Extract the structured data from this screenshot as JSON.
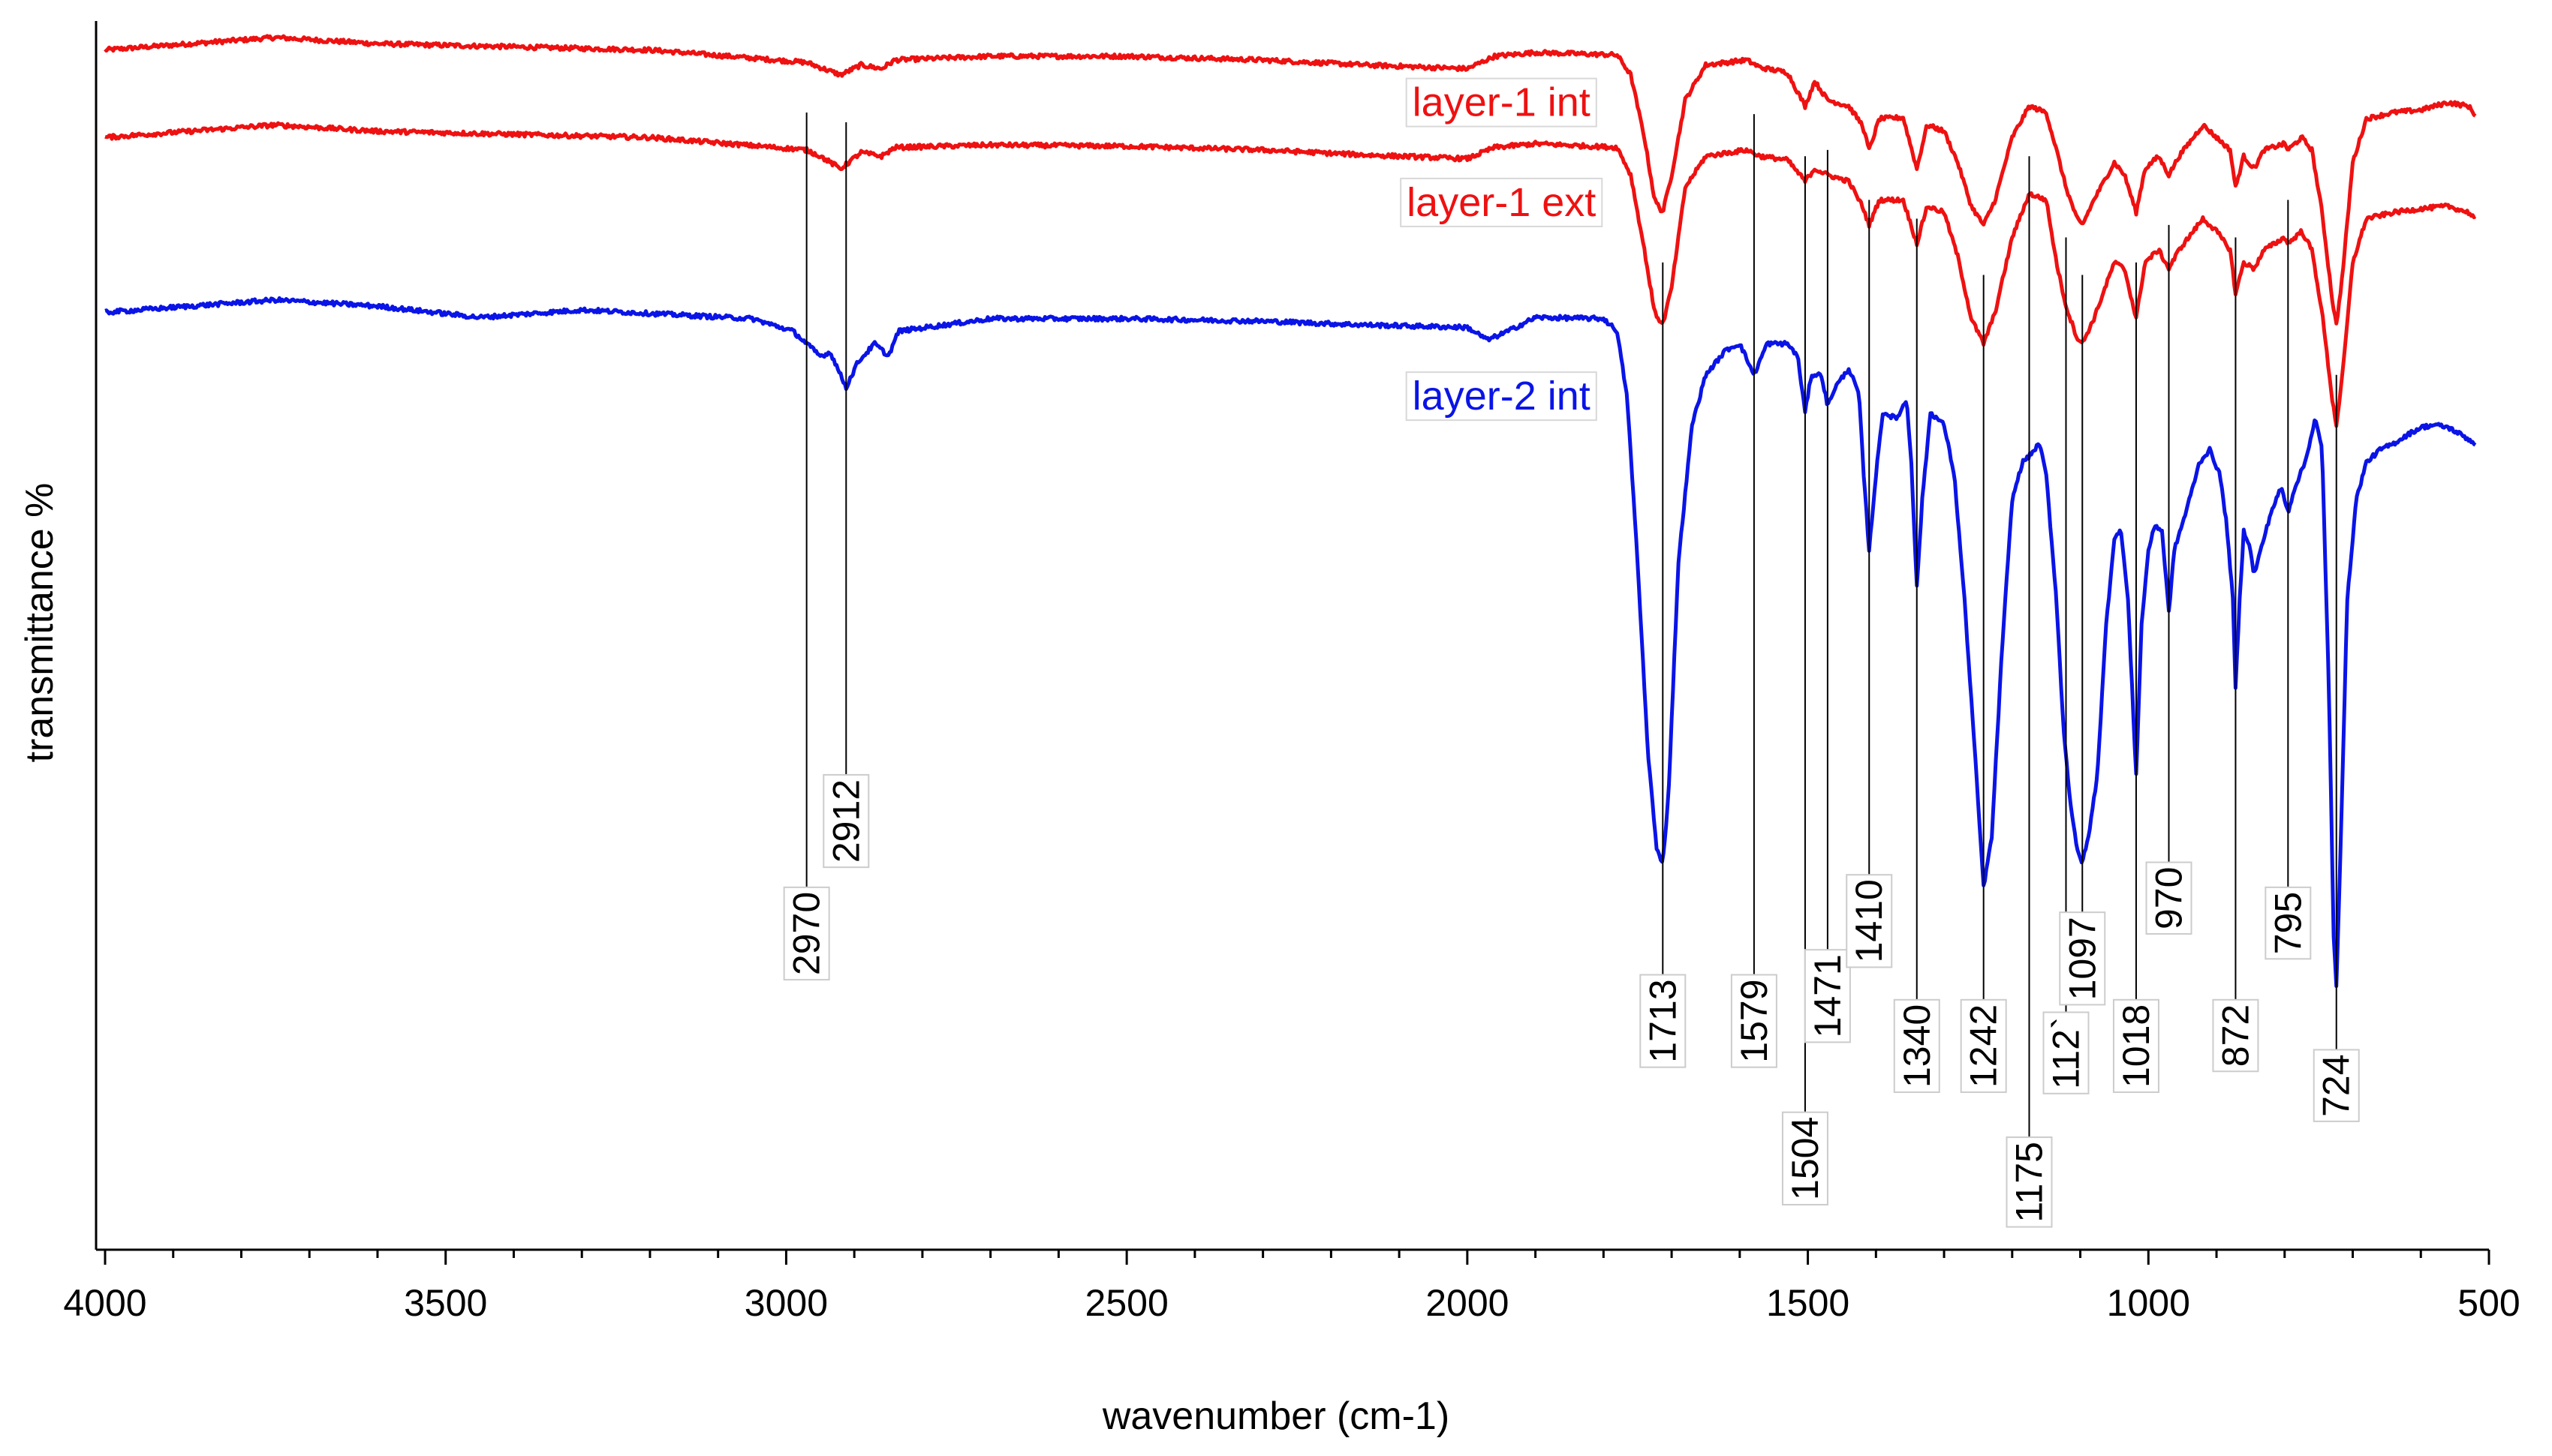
{
  "chart_data": {
    "type": "line",
    "title": "",
    "xlabel": "wavenumber (cm-1)",
    "ylabel": "transmittance %",
    "xlim": [
      4000,
      500
    ],
    "x_reversed": true,
    "ylim": [
      0,
      100
    ],
    "grid": false,
    "x_ticks": [
      4000,
      3500,
      3000,
      2500,
      2000,
      1500,
      1000,
      500
    ],
    "x_minor_step": 100,
    "series": [
      {
        "name": "layer-1 int",
        "color": "#ee1111",
        "baseline": 96,
        "points": [
          [
            4000,
            96
          ],
          [
            3750,
            97
          ],
          [
            3600,
            96.5
          ],
          [
            3200,
            96
          ],
          [
            2970,
            95
          ],
          [
            2950,
            94.6
          ],
          [
            2920,
            94
          ],
          [
            2890,
            94.8
          ],
          [
            2860,
            94.5
          ],
          [
            2840,
            95.2
          ],
          [
            2700,
            95.5
          ],
          [
            2500,
            95.5
          ],
          [
            2300,
            95.2
          ],
          [
            2150,
            94.8
          ],
          [
            2000,
            94.5
          ],
          [
            1960,
            95.5
          ],
          [
            1900,
            95.8
          ],
          [
            1780,
            95.6
          ],
          [
            1760,
            94
          ],
          [
            1740,
            89
          ],
          [
            1725,
            84
          ],
          [
            1713,
            83
          ],
          [
            1700,
            86
          ],
          [
            1680,
            92
          ],
          [
            1650,
            94.8
          ],
          [
            1590,
            95.2
          ],
          [
            1570,
            94.6
          ],
          [
            1530,
            94.2
          ],
          [
            1504,
            91.5
          ],
          [
            1490,
            93.5
          ],
          [
            1471,
            92
          ],
          [
            1440,
            91.5
          ],
          [
            1420,
            90
          ],
          [
            1410,
            88
          ],
          [
            1395,
            90.5
          ],
          [
            1360,
            90.6
          ],
          [
            1340,
            86.5
          ],
          [
            1325,
            90
          ],
          [
            1300,
            89.5
          ],
          [
            1280,
            87
          ],
          [
            1260,
            83.5
          ],
          [
            1242,
            82
          ],
          [
            1225,
            84
          ],
          [
            1200,
            89
          ],
          [
            1175,
            91.5
          ],
          [
            1150,
            91
          ],
          [
            1135,
            88
          ],
          [
            1121,
            85
          ],
          [
            1105,
            82.5
          ],
          [
            1097,
            82
          ],
          [
            1080,
            84
          ],
          [
            1050,
            87
          ],
          [
            1035,
            86
          ],
          [
            1018,
            83
          ],
          [
            1005,
            86.5
          ],
          [
            985,
            87.5
          ],
          [
            970,
            86
          ],
          [
            955,
            87.5
          ],
          [
            920,
            90
          ],
          [
            900,
            89
          ],
          [
            880,
            88
          ],
          [
            872,
            85
          ],
          [
            860,
            87.5
          ],
          [
            845,
            86.5
          ],
          [
            830,
            88
          ],
          [
            800,
            88.5
          ],
          [
            795,
            88
          ],
          [
            775,
            89
          ],
          [
            760,
            88
          ],
          [
            745,
            83
          ],
          [
            730,
            76
          ],
          [
            724,
            74
          ],
          [
            715,
            78
          ],
          [
            700,
            87
          ],
          [
            680,
            90.5
          ],
          [
            640,
            91
          ],
          [
            600,
            91.2
          ],
          [
            560,
            91.8
          ],
          [
            530,
            91.5
          ],
          [
            520,
            90.8
          ]
        ]
      },
      {
        "name": "layer-1 ext",
        "color": "#ee1111",
        "baseline": 89,
        "points": [
          [
            4000,
            89
          ],
          [
            3750,
            90
          ],
          [
            3600,
            89.5
          ],
          [
            3200,
            89
          ],
          [
            2970,
            88
          ],
          [
            2950,
            87.5
          ],
          [
            2920,
            86.5
          ],
          [
            2890,
            87.8
          ],
          [
            2860,
            87.5
          ],
          [
            2840,
            88.2
          ],
          [
            2700,
            88.4
          ],
          [
            2500,
            88.3
          ],
          [
            2300,
            88
          ],
          [
            2150,
            87.6
          ],
          [
            2000,
            87.3
          ],
          [
            1960,
            88.2
          ],
          [
            1900,
            88.5
          ],
          [
            1780,
            88.2
          ],
          [
            1760,
            86
          ],
          [
            1740,
            80
          ],
          [
            1725,
            75
          ],
          [
            1713,
            74
          ],
          [
            1700,
            77
          ],
          [
            1680,
            85
          ],
          [
            1650,
            87.5
          ],
          [
            1590,
            88
          ],
          [
            1570,
            87.5
          ],
          [
            1530,
            87.2
          ],
          [
            1504,
            85.5
          ],
          [
            1490,
            86.5
          ],
          [
            1471,
            86
          ],
          [
            1440,
            85.5
          ],
          [
            1420,
            83.5
          ],
          [
            1410,
            82
          ],
          [
            1395,
            84
          ],
          [
            1360,
            84
          ],
          [
            1340,
            80.5
          ],
          [
            1325,
            83.5
          ],
          [
            1300,
            83
          ],
          [
            1280,
            79.5
          ],
          [
            1260,
            74.5
          ],
          [
            1242,
            72.5
          ],
          [
            1225,
            75
          ],
          [
            1200,
            81
          ],
          [
            1175,
            84.5
          ],
          [
            1150,
            84
          ],
          [
            1135,
            79
          ],
          [
            1121,
            75.5
          ],
          [
            1105,
            73
          ],
          [
            1097,
            72.5
          ],
          [
            1080,
            74.5
          ],
          [
            1050,
            79
          ],
          [
            1035,
            78.5
          ],
          [
            1018,
            74.5
          ],
          [
            1005,
            79
          ],
          [
            985,
            80
          ],
          [
            970,
            78.5
          ],
          [
            955,
            80
          ],
          [
            920,
            82.5
          ],
          [
            900,
            81.5
          ],
          [
            880,
            80
          ],
          [
            872,
            76.5
          ],
          [
            860,
            79
          ],
          [
            845,
            78.5
          ],
          [
            830,
            80
          ],
          [
            800,
            81
          ],
          [
            795,
            80.5
          ],
          [
            775,
            81.5
          ],
          [
            760,
            80
          ],
          [
            745,
            75
          ],
          [
            730,
            68
          ],
          [
            724,
            66
          ],
          [
            715,
            70
          ],
          [
            700,
            79
          ],
          [
            680,
            82.5
          ],
          [
            640,
            83
          ],
          [
            600,
            83.3
          ],
          [
            560,
            83.5
          ],
          [
            530,
            83
          ],
          [
            520,
            82.5
          ]
        ]
      },
      {
        "name": "layer-2 int",
        "color": "#0a14e6",
        "baseline": 75,
        "points": [
          [
            4000,
            75
          ],
          [
            3750,
            76
          ],
          [
            3600,
            75.5
          ],
          [
            3450,
            74.6
          ],
          [
            3300,
            75.2
          ],
          [
            3050,
            74.5
          ],
          [
            2990,
            73.5
          ],
          [
            2970,
            72.5
          ],
          [
            2950,
            71.5
          ],
          [
            2935,
            71.8
          ],
          [
            2912,
            69
          ],
          [
            2895,
            71
          ],
          [
            2870,
            72.5
          ],
          [
            2850,
            71.5
          ],
          [
            2835,
            73.5
          ],
          [
            2700,
            74.5
          ],
          [
            2500,
            74.5
          ],
          [
            2300,
            74.3
          ],
          [
            2150,
            74
          ],
          [
            2000,
            73.8
          ],
          [
            1970,
            72.8
          ],
          [
            1940,
            73.5
          ],
          [
            1900,
            74.6
          ],
          [
            1800,
            74.5
          ],
          [
            1780,
            73.5
          ],
          [
            1765,
            68
          ],
          [
            1750,
            55
          ],
          [
            1735,
            40
          ],
          [
            1722,
            32
          ],
          [
            1713,
            31
          ],
          [
            1705,
            36
          ],
          [
            1690,
            55
          ],
          [
            1670,
            66
          ],
          [
            1650,
            70
          ],
          [
            1620,
            72
          ],
          [
            1600,
            72.5
          ],
          [
            1579,
            70
          ],
          [
            1560,
            72.5
          ],
          [
            1530,
            72.5
          ],
          [
            1515,
            71.5
          ],
          [
            1504,
            67
          ],
          [
            1495,
            70
          ],
          [
            1480,
            70
          ],
          [
            1471,
            67.5
          ],
          [
            1460,
            69
          ],
          [
            1440,
            70.5
          ],
          [
            1425,
            68.5
          ],
          [
            1418,
            62
          ],
          [
            1410,
            56
          ],
          [
            1400,
            62
          ],
          [
            1390,
            67
          ],
          [
            1370,
            66.5
          ],
          [
            1355,
            68
          ],
          [
            1348,
            63
          ],
          [
            1340,
            53
          ],
          [
            1332,
            60
          ],
          [
            1320,
            67
          ],
          [
            1300,
            66
          ],
          [
            1285,
            62
          ],
          [
            1270,
            52
          ],
          [
            1255,
            40
          ],
          [
            1242,
            29
          ],
          [
            1230,
            33
          ],
          [
            1215,
            48
          ],
          [
            1200,
            60
          ],
          [
            1185,
            63
          ],
          [
            1175,
            63.5
          ],
          [
            1160,
            64.5
          ],
          [
            1150,
            62
          ],
          [
            1135,
            52
          ],
          [
            1125,
            42
          ],
          [
            1115,
            36
          ],
          [
            1105,
            32
          ],
          [
            1097,
            31
          ],
          [
            1088,
            33
          ],
          [
            1075,
            38
          ],
          [
            1062,
            50
          ],
          [
            1050,
            57
          ],
          [
            1040,
            57.5
          ],
          [
            1030,
            52
          ],
          [
            1018,
            38
          ],
          [
            1010,
            50
          ],
          [
            1000,
            56
          ],
          [
            990,
            58
          ],
          [
            980,
            57.5
          ],
          [
            970,
            51
          ],
          [
            962,
            56
          ],
          [
            945,
            59
          ],
          [
            925,
            63
          ],
          [
            910,
            64
          ],
          [
            895,
            62
          ],
          [
            885,
            58
          ],
          [
            876,
            52
          ],
          [
            872,
            45
          ],
          [
            866,
            52
          ],
          [
            860,
            57.5
          ],
          [
            852,
            56.5
          ],
          [
            845,
            54
          ],
          [
            835,
            56
          ],
          [
            820,
            59
          ],
          [
            805,
            61
          ],
          [
            795,
            59
          ],
          [
            785,
            61
          ],
          [
            770,
            63
          ],
          [
            755,
            66.5
          ],
          [
            745,
            64
          ],
          [
            735,
            45
          ],
          [
            728,
            25
          ],
          [
            724,
            21
          ],
          [
            718,
            32
          ],
          [
            708,
            52
          ],
          [
            695,
            60
          ],
          [
            680,
            63
          ],
          [
            660,
            64
          ],
          [
            640,
            64.5
          ],
          [
            620,
            65.2
          ],
          [
            600,
            65.8
          ],
          [
            580,
            66
          ],
          [
            560,
            65.8
          ],
          [
            540,
            65.2
          ],
          [
            520,
            64.5
          ]
        ]
      }
    ],
    "peak_annotations": [
      {
        "label": "2970",
        "x": 2970,
        "y_end": 29
      },
      {
        "label": "2912",
        "x": 2912,
        "y_end": 38
      },
      {
        "label": "1713",
        "x": 1713,
        "y_end": 22
      },
      {
        "label": "1579",
        "x": 1579,
        "y_end": 22
      },
      {
        "label": "1504",
        "x": 1504,
        "y_end": 11
      },
      {
        "label": "1471",
        "x": 1471,
        "y_end": 24
      },
      {
        "label": "1410",
        "x": 1410,
        "y_end": 30
      },
      {
        "label": "1340",
        "x": 1340,
        "y_end": 20
      },
      {
        "label": "1242",
        "x": 1242,
        "y_end": 20
      },
      {
        "label": "1175",
        "x": 1175,
        "y_end": 9
      },
      {
        "label": "112`",
        "x": 1121,
        "y_end": 19
      },
      {
        "label": "1097",
        "x": 1097,
        "y_end": 27
      },
      {
        "label": "1018",
        "x": 1018,
        "y_end": 20
      },
      {
        "label": "970",
        "x": 970,
        "y_end": 31
      },
      {
        "label": "872",
        "x": 872,
        "y_end": 20
      },
      {
        "label": "795",
        "x": 795,
        "y_end": 29
      },
      {
        "label": "724",
        "x": 724,
        "y_end": 16
      }
    ],
    "series_labels": [
      {
        "text": "layer-1 int",
        "color": "#ee1111",
        "x": 1950,
        "y": 91.8
      },
      {
        "text": "layer-1 ext",
        "color": "#ee1111",
        "x": 1950,
        "y": 83.8
      },
      {
        "text": "layer-2 int",
        "color": "#0a14e6",
        "x": 1950,
        "y": 68.3
      }
    ]
  }
}
